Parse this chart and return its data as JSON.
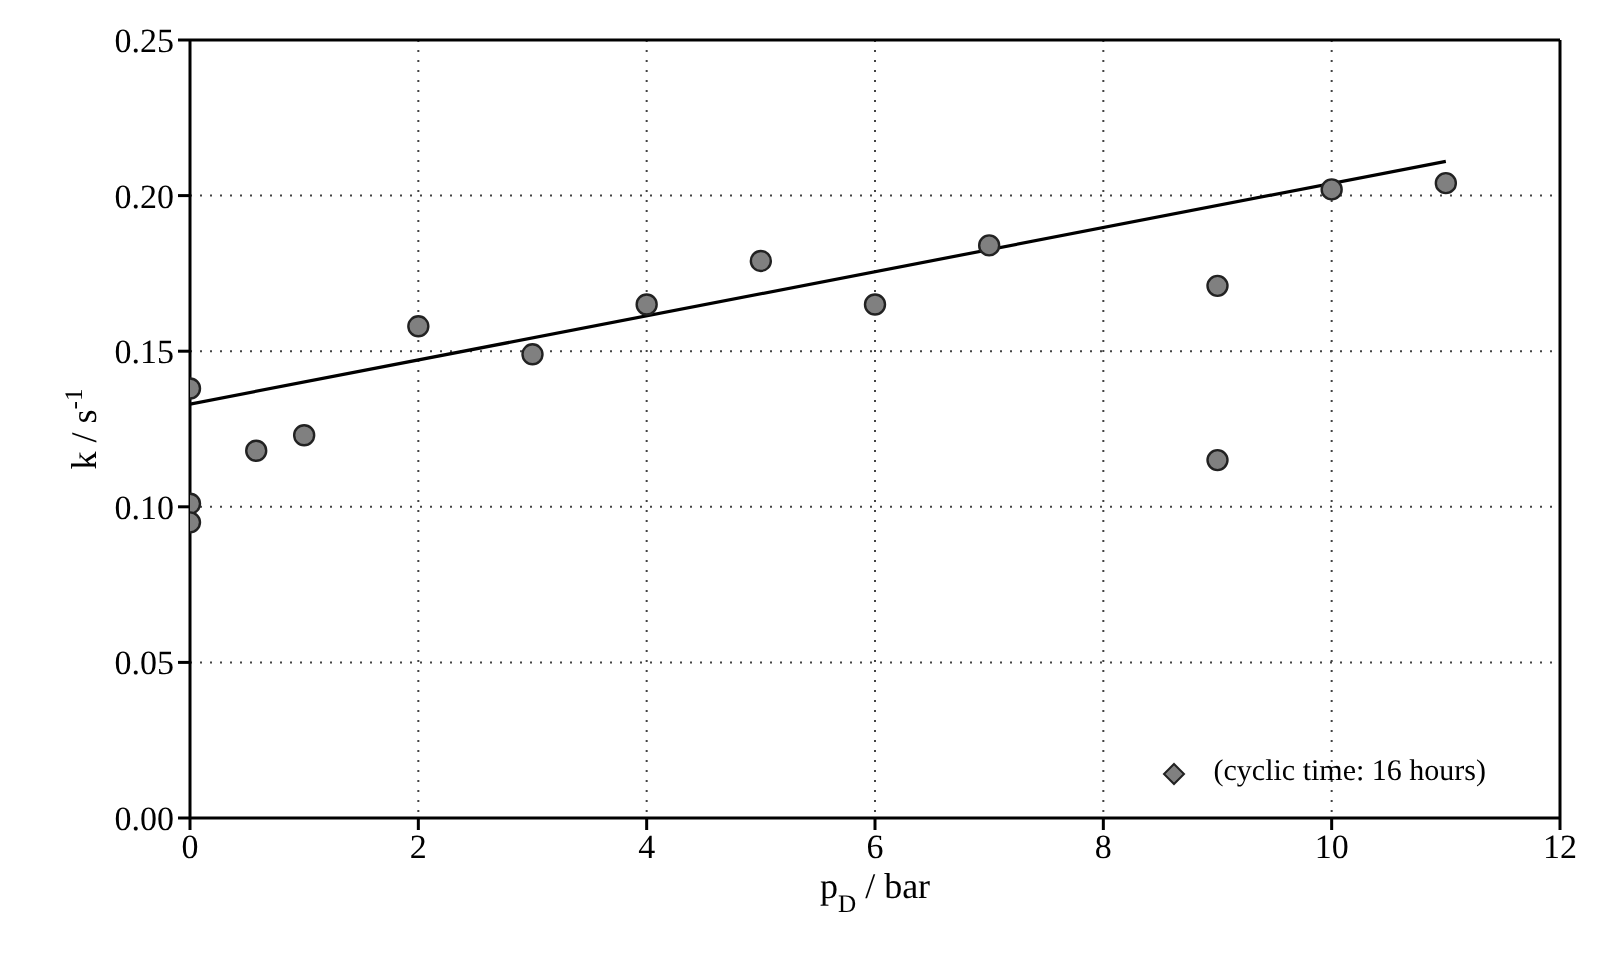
{
  "chart_data": {
    "type": "scatter",
    "xlabel": "p$_{D}$ / bar",
    "ylabel": "k / s$^{-1}$",
    "xlim": [
      0,
      12
    ],
    "xticks": [
      0,
      2,
      4,
      6,
      8,
      10,
      12
    ],
    "ylim": [
      0,
      0.25
    ],
    "yticks": [
      {
        "value": 0,
        "label": "0.00"
      },
      {
        "value": 0.05,
        "label": "0.05"
      },
      {
        "value": 0.1,
        "label": "0.10"
      },
      {
        "value": 0.15,
        "label": "0.15"
      },
      {
        "value": 0.2,
        "label": "0.20"
      },
      {
        "value": 0.25,
        "label": "0.25"
      }
    ],
    "grid": true,
    "legend": "bottom right",
    "marker": "circle",
    "series": [
      {
        "name": "(cyclic time: 16 hours)",
        "color": "#808080",
        "x": [
          0,
          0,
          0,
          0.58,
          1,
          2,
          3,
          4,
          5,
          6,
          7,
          9,
          9,
          10,
          11
        ],
        "values": [
          0.138,
          0.101,
          0.095,
          0.118,
          0.123,
          0.158,
          0.149,
          0.165,
          0.179,
          0.165,
          0.184,
          0.171,
          0.115,
          0.202,
          0.204
        ]
      },
      {
        "type": "line",
        "color": "#000000",
        "marker": "none",
        "x": [
          0,
          11
        ],
        "values": [
          0.133,
          0.211
        ]
      }
    ]
  }
}
